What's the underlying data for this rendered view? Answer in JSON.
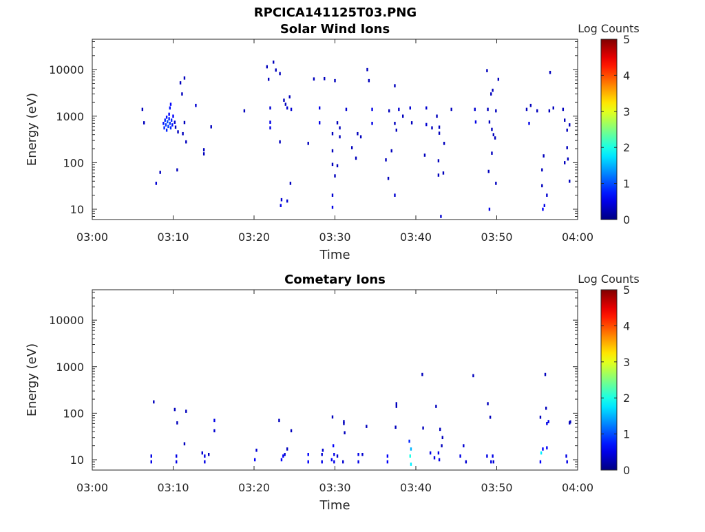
{
  "figure": {
    "title": "RPCICA141125T03.PNG"
  },
  "colors": {
    "axis": "#262626",
    "colormap": "jet"
  },
  "chart_data": [
    {
      "type": "heatmap",
      "title": "Solar Wind Ions",
      "xlabel": "Time",
      "ylabel": "Energy (eV)",
      "x_ticks": [
        "03:00",
        "03:10",
        "03:20",
        "03:30",
        "03:40",
        "03:50",
        "04:00"
      ],
      "x_range_minutes": [
        0,
        60
      ],
      "y_scale": "log",
      "y_ticks": [
        10,
        100,
        1000,
        10000
      ],
      "y_tick_labels": [
        "10",
        "100",
        "1000",
        "10000"
      ],
      "y_range": [
        6,
        45000
      ],
      "colorbar": {
        "label": "Log Counts",
        "range": [
          0,
          5
        ],
        "ticks": [
          "0",
          "1",
          "2",
          "3",
          "4",
          "5"
        ]
      },
      "points": [
        [
          6.2,
          1400,
          0.3
        ],
        [
          6.4,
          720,
          0.3
        ],
        [
          7.9,
          36,
          0.4
        ],
        [
          8.4,
          62,
          0.3
        ],
        [
          8.8,
          700,
          0.7
        ],
        [
          8.9,
          560,
          0.8
        ],
        [
          9.0,
          820,
          0.8
        ],
        [
          9.1,
          650,
          0.9
        ],
        [
          9.2,
          500,
          0.8
        ],
        [
          9.2,
          950,
          0.7
        ],
        [
          9.3,
          760,
          1.0
        ],
        [
          9.4,
          600,
          0.9
        ],
        [
          9.5,
          880,
          0.8
        ],
        [
          9.5,
          1100,
          0.6
        ],
        [
          9.6,
          700,
          0.9
        ],
        [
          9.6,
          1500,
          0.7
        ],
        [
          9.7,
          560,
          0.8
        ],
        [
          9.7,
          1800,
          0.6
        ],
        [
          9.8,
          820,
          0.8
        ],
        [
          9.9,
          650,
          0.7
        ],
        [
          10.0,
          1000,
          0.6
        ],
        [
          10.2,
          740,
          0.4
        ],
        [
          10.3,
          580,
          0.3
        ],
        [
          10.5,
          70,
          0.3
        ],
        [
          10.6,
          460,
          0.3
        ],
        [
          10.9,
          5200,
          0.3
        ],
        [
          11.1,
          3000,
          0.3
        ],
        [
          11.2,
          420,
          0.3
        ],
        [
          11.4,
          6600,
          0.3
        ],
        [
          11.6,
          280,
          0.3
        ],
        [
          11.4,
          730,
          0.3
        ],
        [
          12.8,
          1700,
          0.4
        ],
        [
          13.8,
          190,
          0.3
        ],
        [
          13.8,
          155,
          0.3
        ],
        [
          14.7,
          590,
          0.3
        ],
        [
          18.8,
          1300,
          0.3
        ],
        [
          21.6,
          11500,
          0.3
        ],
        [
          21.8,
          6200,
          0.3
        ],
        [
          22.0,
          740,
          0.5
        ],
        [
          22.0,
          560,
          0.5
        ],
        [
          22.0,
          1500,
          0.4
        ],
        [
          22.4,
          14500,
          0.3
        ],
        [
          22.7,
          9800,
          0.3
        ],
        [
          23.2,
          280,
          0.3
        ],
        [
          23.3,
          12,
          0.5
        ],
        [
          23.4,
          16,
          0.4
        ],
        [
          23.2,
          8200,
          0.3
        ],
        [
          23.7,
          2200,
          0.3
        ],
        [
          23.9,
          1800,
          0.3
        ],
        [
          24.1,
          1500,
          0.4
        ],
        [
          24.4,
          2600,
          0.3
        ],
        [
          24.6,
          1400,
          0.4
        ],
        [
          24.5,
          36,
          0.3
        ],
        [
          24.1,
          15,
          0.4
        ],
        [
          26.7,
          260,
          0.3
        ],
        [
          27.4,
          6300,
          0.3
        ],
        [
          28.1,
          1500,
          0.5
        ],
        [
          28.1,
          720,
          0.5
        ],
        [
          28.7,
          6400,
          0.3
        ],
        [
          29.7,
          420,
          0.3
        ],
        [
          29.7,
          180,
          0.3
        ],
        [
          29.7,
          92,
          0.3
        ],
        [
          29.7,
          20,
          0.4
        ],
        [
          29.7,
          11,
          0.5
        ],
        [
          30.0,
          5800,
          0.3
        ],
        [
          30.0,
          52,
          0.3
        ],
        [
          30.3,
          720,
          0.3
        ],
        [
          30.3,
          86,
          0.3
        ],
        [
          30.6,
          560,
          0.3
        ],
        [
          30.6,
          360,
          0.3
        ],
        [
          31.4,
          1400,
          0.4
        ],
        [
          32.1,
          210,
          0.3
        ],
        [
          32.6,
          125,
          0.3
        ],
        [
          32.8,
          420,
          0.3
        ],
        [
          33.2,
          360,
          0.3
        ],
        [
          34.0,
          10000,
          0.3
        ],
        [
          34.2,
          5800,
          0.3
        ],
        [
          34.6,
          1400,
          0.5
        ],
        [
          34.6,
          700,
          0.5
        ],
        [
          36.3,
          115,
          0.3
        ],
        [
          36.6,
          46,
          0.3
        ],
        [
          36.7,
          1300,
          0.3
        ],
        [
          37.0,
          180,
          0.3
        ],
        [
          37.4,
          4500,
          0.3
        ],
        [
          37.4,
          700,
          0.3
        ],
        [
          37.4,
          20,
          0.4
        ],
        [
          37.6,
          500,
          0.3
        ],
        [
          37.9,
          1400,
          0.4
        ],
        [
          38.4,
          1000,
          0.3
        ],
        [
          39.3,
          1500,
          0.4
        ],
        [
          39.5,
          720,
          0.3
        ],
        [
          41.1,
          145,
          0.3
        ],
        [
          41.3,
          1500,
          0.4
        ],
        [
          41.3,
          660,
          0.4
        ],
        [
          42.0,
          560,
          0.3
        ],
        [
          42.6,
          1000,
          0.3
        ],
        [
          42.8,
          110,
          0.3
        ],
        [
          42.8,
          54,
          0.3
        ],
        [
          42.9,
          580,
          0.3
        ],
        [
          42.9,
          430,
          0.3
        ],
        [
          43.1,
          7,
          0.4
        ],
        [
          43.5,
          260,
          0.3
        ],
        [
          43.4,
          60,
          0.3
        ],
        [
          44.4,
          1400,
          0.3
        ],
        [
          47.3,
          1400,
          0.4
        ],
        [
          47.4,
          750,
          0.5
        ],
        [
          48.8,
          9500,
          0.3
        ],
        [
          48.9,
          1400,
          0.3
        ],
        [
          49.0,
          65,
          0.3
        ],
        [
          49.1,
          10,
          0.5
        ],
        [
          49.1,
          750,
          0.3
        ],
        [
          49.3,
          3000,
          0.3
        ],
        [
          49.4,
          520,
          0.3
        ],
        [
          49.4,
          160,
          0.3
        ],
        [
          49.5,
          3600,
          0.3
        ],
        [
          49.6,
          400,
          0.3
        ],
        [
          49.8,
          340,
          0.3
        ],
        [
          49.9,
          1300,
          0.3
        ],
        [
          49.9,
          36,
          0.3
        ],
        [
          50.2,
          6200,
          0.3
        ],
        [
          53.7,
          1400,
          0.3
        ],
        [
          54.0,
          700,
          0.5
        ],
        [
          54.2,
          1700,
          0.3
        ],
        [
          55.0,
          1300,
          0.3
        ],
        [
          55.6,
          70,
          0.3
        ],
        [
          55.6,
          32,
          0.3
        ],
        [
          55.7,
          10,
          0.6
        ],
        [
          55.8,
          140,
          0.3
        ],
        [
          55.9,
          12,
          0.5
        ],
        [
          56.2,
          20,
          0.4
        ],
        [
          56.5,
          1300,
          0.3
        ],
        [
          56.6,
          8700,
          0.3
        ],
        [
          57.0,
          1500,
          0.3
        ],
        [
          58.2,
          1400,
          0.3
        ],
        [
          58.4,
          820,
          0.3
        ],
        [
          58.4,
          100,
          0.3
        ],
        [
          58.7,
          210,
          0.3
        ],
        [
          58.7,
          500,
          0.3
        ],
        [
          58.8,
          120,
          0.3
        ],
        [
          59.0,
          650,
          0.3
        ],
        [
          59.0,
          40,
          0.3
        ]
      ]
    },
    {
      "type": "heatmap",
      "title": "Cometary Ions",
      "xlabel": "Time",
      "ylabel": "Energy (eV)",
      "x_ticks": [
        "03:00",
        "03:10",
        "03:20",
        "03:30",
        "03:40",
        "03:50",
        "04:00"
      ],
      "x_range_minutes": [
        0,
        60
      ],
      "y_scale": "log",
      "y_ticks": [
        10,
        100,
        1000,
        10000
      ],
      "y_tick_labels": [
        "10",
        "100",
        "1000",
        "10000"
      ],
      "y_range": [
        6,
        45000
      ],
      "colorbar": {
        "label": "Log Counts",
        "range": [
          0,
          5
        ],
        "ticks": [
          "0",
          "1",
          "2",
          "3",
          "4",
          "5"
        ]
      },
      "points": [
        [
          7.3,
          9,
          0.5
        ],
        [
          7.3,
          12,
          0.5
        ],
        [
          7.6,
          175,
          0.3
        ],
        [
          10.2,
          120,
          0.3
        ],
        [
          10.4,
          9,
          0.5
        ],
        [
          10.4,
          12,
          0.5
        ],
        [
          10.5,
          62,
          0.3
        ],
        [
          11.4,
          22,
          0.3
        ],
        [
          11.6,
          110,
          0.3
        ],
        [
          13.6,
          14,
          0.4
        ],
        [
          13.9,
          9,
          0.5
        ],
        [
          13.9,
          12,
          0.5
        ],
        [
          14.4,
          13,
          0.3
        ],
        [
          15.1,
          70,
          0.5
        ],
        [
          15.1,
          42,
          0.4
        ],
        [
          20.1,
          10,
          0.6
        ],
        [
          20.3,
          16,
          0.4
        ],
        [
          23.1,
          70,
          0.3
        ],
        [
          23.4,
          10,
          0.6
        ],
        [
          23.6,
          12,
          0.6
        ],
        [
          23.8,
          13,
          0.4
        ],
        [
          24.1,
          17,
          0.3
        ],
        [
          24.6,
          42,
          0.3
        ],
        [
          26.7,
          13,
          0.6
        ],
        [
          26.7,
          9,
          0.6
        ],
        [
          28.4,
          13,
          0.4
        ],
        [
          28.4,
          9,
          0.5
        ],
        [
          28.5,
          16,
          0.4
        ],
        [
          29.6,
          10,
          0.6
        ],
        [
          29.7,
          83,
          0.3
        ],
        [
          29.8,
          20,
          0.6
        ],
        [
          29.9,
          13,
          0.5
        ],
        [
          29.9,
          9,
          0.5
        ],
        [
          30.3,
          12,
          0.4
        ],
        [
          31.0,
          9,
          0.4
        ],
        [
          31.1,
          60,
          0.3
        ],
        [
          31.2,
          38,
          0.3
        ],
        [
          31.1,
          66,
          0.3
        ],
        [
          32.9,
          13,
          0.5
        ],
        [
          32.9,
          9,
          0.5
        ],
        [
          33.4,
          13,
          0.4
        ],
        [
          33.9,
          52,
          0.3
        ],
        [
          36.5,
          12,
          0.6
        ],
        [
          36.5,
          9,
          0.6
        ],
        [
          37.5,
          50,
          0.3
        ],
        [
          37.6,
          160,
          0.3
        ],
        [
          37.6,
          140,
          0.3
        ],
        [
          39.2,
          25,
          0.8
        ],
        [
          39.3,
          12,
          2.0
        ],
        [
          39.4,
          8,
          1.8
        ],
        [
          39.4,
          17,
          1.5
        ],
        [
          40.8,
          680,
          0.3
        ],
        [
          40.9,
          48,
          0.3
        ],
        [
          41.8,
          14,
          0.5
        ],
        [
          42.3,
          11,
          0.5
        ],
        [
          42.5,
          140,
          0.3
        ],
        [
          42.8,
          14,
          0.5
        ],
        [
          42.9,
          10,
          0.5
        ],
        [
          43.0,
          45,
          0.3
        ],
        [
          43.3,
          30,
          0.3
        ],
        [
          43.2,
          20,
          0.3
        ],
        [
          45.5,
          12,
          0.5
        ],
        [
          45.9,
          20,
          0.4
        ],
        [
          46.2,
          9,
          0.4
        ],
        [
          47.1,
          640,
          0.3
        ],
        [
          48.8,
          12,
          0.5
        ],
        [
          48.9,
          160,
          0.3
        ],
        [
          49.2,
          82,
          0.3
        ],
        [
          49.3,
          9,
          0.5
        ],
        [
          49.5,
          12,
          0.5
        ],
        [
          49.6,
          9,
          0.4
        ],
        [
          55.4,
          9,
          0.6
        ],
        [
          55.4,
          82,
          0.3
        ],
        [
          55.5,
          14,
          1.8
        ],
        [
          55.7,
          17,
          0.6
        ],
        [
          56.0,
          680,
          0.3
        ],
        [
          56.1,
          128,
          0.3
        ],
        [
          56.2,
          18,
          0.6
        ],
        [
          56.2,
          60,
          0.5
        ],
        [
          56.4,
          66,
          0.5
        ],
        [
          58.6,
          12,
          0.5
        ],
        [
          58.7,
          9,
          0.5
        ],
        [
          59.0,
          62,
          0.3
        ],
        [
          59.1,
          65,
          0.3
        ]
      ]
    }
  ]
}
